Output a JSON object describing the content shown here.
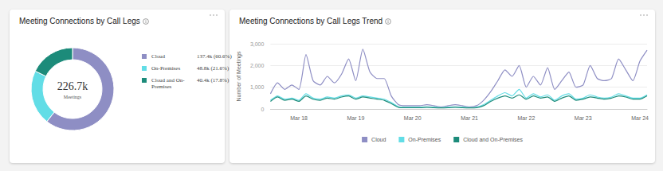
{
  "chart_data": [
    {
      "type": "pie",
      "title": "Meeting Connections by Call Legs",
      "categories": [
        "Cloud",
        "On-Premises",
        "Cloud and On-Premises"
      ],
      "values": [
        137400,
        48800,
        40400
      ],
      "value_labels": [
        "137.4k (60.6%)",
        "48.8k (21.6%)",
        "40.4k (17.8%)"
      ],
      "colors": [
        "#8e8ec4",
        "#62dde6",
        "#1c8b7a"
      ],
      "center_text": [
        "226.7k",
        "Meetings"
      ],
      "legend": "right"
    },
    {
      "type": "line",
      "title": "Meeting Connections by Call Legs Trend",
      "y_label": "Number of Meetings",
      "categories": [
        null,
        null,
        null,
        null,
        "Mar 18",
        null,
        null,
        null,
        null,
        null,
        null,
        null,
        "Mar 19",
        null,
        null,
        null,
        null,
        null,
        null,
        null,
        "Mar 20",
        null,
        null,
        null,
        null,
        null,
        null,
        null,
        "Mar 21",
        null,
        null,
        null,
        null,
        null,
        null,
        null,
        "Mar 22",
        null,
        null,
        null,
        null,
        null,
        null,
        null,
        "Mar 23",
        null,
        null,
        null,
        null,
        null,
        null,
        null,
        "Mar 24",
        null
      ],
      "series": [
        {
          "name": "Cloud",
          "color": "#8e8ec4",
          "values": [
            700,
            1200,
            900,
            1100,
            900,
            2500,
            1300,
            1100,
            1500,
            1200,
            1600,
            2300,
            1300,
            2750,
            1700,
            1400,
            1400,
            600,
            200,
            150,
            150,
            150,
            200,
            150,
            100,
            150,
            200,
            150,
            100,
            150,
            400,
            800,
            1300,
            1800,
            1500,
            2000,
            1000,
            1500,
            1100,
            1900,
            900,
            1300,
            1700,
            1000,
            1100,
            2000,
            1400,
            1300,
            1400,
            2300,
            1800,
            1300,
            2200,
            2700
          ]
        },
        {
          "name": "On-Premises",
          "color": "#62dde6",
          "values": [
            400,
            600,
            450,
            500,
            400,
            700,
            500,
            450,
            550,
            500,
            600,
            650,
            500,
            600,
            550,
            500,
            450,
            300,
            100,
            80,
            80,
            80,
            100,
            80,
            60,
            80,
            100,
            80,
            60,
            80,
            200,
            400,
            600,
            750,
            600,
            900,
            500,
            700,
            550,
            650,
            400,
            600,
            700,
            450,
            500,
            650,
            550,
            500,
            550,
            700,
            600,
            500,
            500,
            650
          ]
        },
        {
          "name": "Cloud and On-Premises",
          "color": "#1c8b7a",
          "values": [
            350,
            550,
            400,
            450,
            350,
            600,
            450,
            400,
            500,
            450,
            550,
            600,
            450,
            550,
            500,
            450,
            400,
            250,
            80,
            60,
            60,
            60,
            80,
            60,
            50,
            60,
            80,
            60,
            50,
            60,
            150,
            350,
            500,
            600,
            500,
            650,
            450,
            600,
            500,
            550,
            350,
            500,
            600,
            400,
            450,
            550,
            500,
            450,
            500,
            600,
            550,
            450,
            450,
            600
          ]
        }
      ],
      "ylim": [
        0,
        3000
      ],
      "yticks": [
        0,
        {
          "value": 1000,
          "label": "1,000"
        },
        {
          "value": 2000,
          "label": "2,000"
        },
        {
          "value": 3000,
          "label": "3,000"
        }
      ],
      "grid": true,
      "legend": "bottom"
    }
  ]
}
